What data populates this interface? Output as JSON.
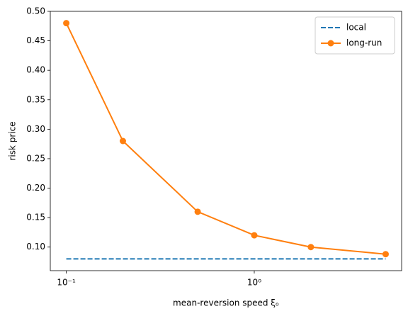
{
  "chart_data": {
    "type": "line",
    "x_label": "mean-reversion speed ξₒ",
    "y_label": "risk price",
    "x": [
      0.1,
      0.2,
      0.5,
      1,
      2,
      5
    ],
    "series": [
      {
        "name": "local",
        "color": "#1f77b4",
        "dashed": true,
        "markers": false,
        "values": [
          0.08,
          0.08,
          0.08,
          0.08,
          0.08,
          0.08
        ]
      },
      {
        "name": "long-run",
        "color": "#ff7f0e",
        "dashed": false,
        "markers": true,
        "values": [
          0.48,
          0.28,
          0.16,
          0.12,
          0.1,
          0.088
        ]
      }
    ],
    "xlog": true,
    "xlim": [
      0.0822,
      6.08
    ],
    "ylim": [
      0.06,
      0.5
    ],
    "xticks": [
      {
        "value": 0.1,
        "label": "10⁻¹"
      },
      {
        "value": 1,
        "label": "10⁰"
      }
    ],
    "yticks": [
      {
        "value": 0.1,
        "label": "0.10"
      },
      {
        "value": 0.15,
        "label": "0.15"
      },
      {
        "value": 0.2,
        "label": "0.20"
      },
      {
        "value": 0.25,
        "label": "0.25"
      },
      {
        "value": 0.3,
        "label": "0.30"
      },
      {
        "value": 0.35,
        "label": "0.35"
      },
      {
        "value": 0.4,
        "label": "0.40"
      },
      {
        "value": 0.45,
        "label": "0.45"
      },
      {
        "value": 0.5,
        "label": "0.50"
      }
    ],
    "grid": false,
    "legend": "upper right"
  }
}
